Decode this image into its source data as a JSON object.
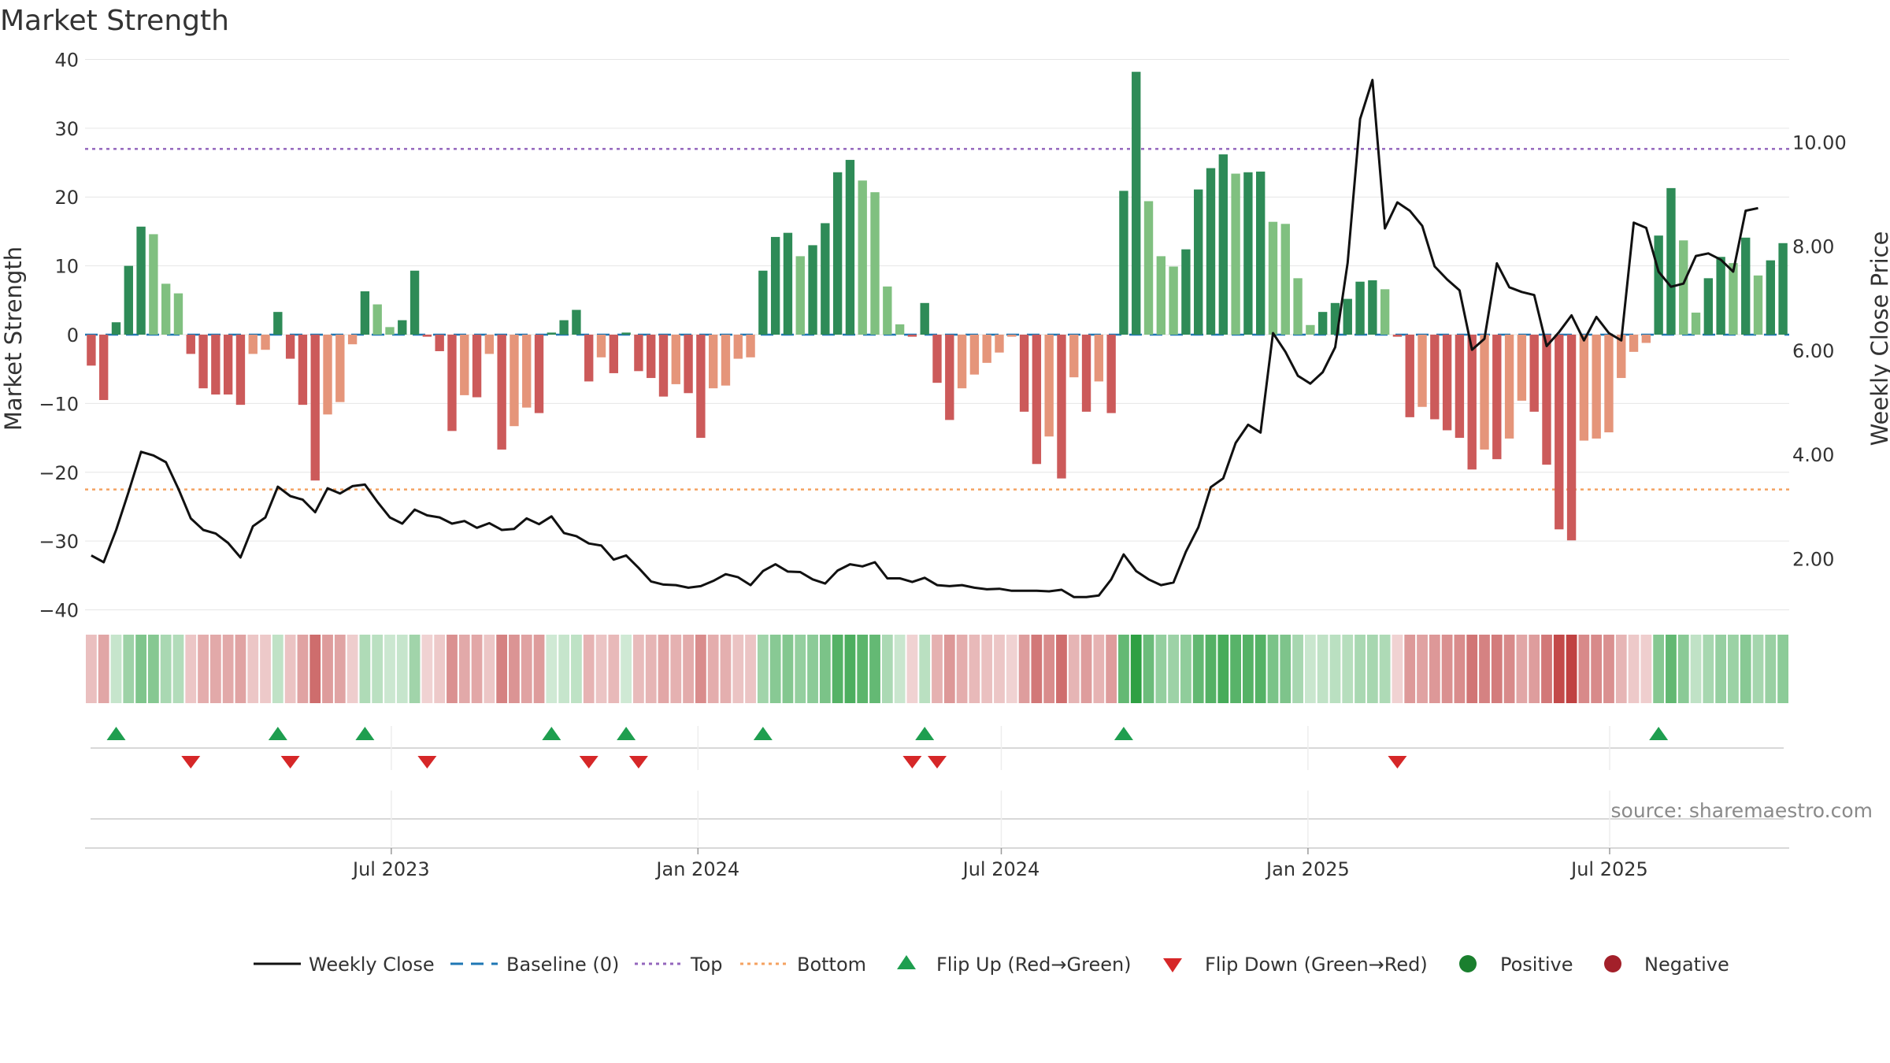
{
  "chart_data": {
    "type": "bar",
    "title": "Market Strength",
    "ylabel": "Market Strength",
    "y2label": "Weekly Close Price",
    "ylim": [
      -42,
      42
    ],
    "y2lim": [
      0.75,
      11.85
    ],
    "yticks": [
      40,
      30,
      20,
      10,
      0,
      -10,
      -20,
      -30,
      -40
    ],
    "y2ticks": [
      "10.00",
      "8.00",
      "6.00",
      "4.00",
      "2.00"
    ],
    "y2tick_values": [
      10,
      8,
      6,
      4,
      2
    ],
    "x_start_date": "2023-01-02",
    "x_end_date": "2025-10-13",
    "xticks": [
      {
        "label": "Jul 2023",
        "date": "2023-07-01"
      },
      {
        "label": "Jan 2024",
        "date": "2024-01-01"
      },
      {
        "label": "Jul 2024",
        "date": "2024-07-01"
      },
      {
        "label": "Jan 2025",
        "date": "2025-01-01"
      },
      {
        "label": "Jul 2025",
        "date": "2025-07-01"
      }
    ],
    "top_line": 27,
    "bottom_line": -22.5,
    "strength": [
      -4.5,
      -9.5,
      1.8,
      10,
      15.7,
      14.6,
      7.4,
      6,
      -2.8,
      -7.8,
      -8.7,
      -8.7,
      -10.2,
      -2.8,
      -2.2,
      3.3,
      -3.5,
      -10.2,
      -21.2,
      -11.6,
      -9.8,
      -1.4,
      6.3,
      4.4,
      1.1,
      2.1,
      9.3,
      -0.3,
      -2.4,
      -14,
      -8.8,
      -9.1,
      -2.8,
      -16.7,
      -13.3,
      -10.6,
      -11.4,
      0.3,
      2.1,
      3.6,
      -6.8,
      -3.3,
      -5.6,
      0.3,
      -5.3,
      -6.3,
      -9,
      -7.2,
      -8.5,
      -15,
      -7.8,
      -7.4,
      -3.5,
      -3.3,
      9.3,
      14.2,
      14.8,
      11.4,
      13,
      16.2,
      23.6,
      25.4,
      22.4,
      20.7,
      7,
      1.5,
      -0.3,
      4.6,
      -7,
      -12.4,
      -7.8,
      -5.8,
      -4.1,
      -2.6,
      -0.3,
      -11.2,
      -18.8,
      -14.8,
      -20.9,
      -6.2,
      -11.2,
      -6.8,
      -11.4,
      20.9,
      38.2,
      19.4,
      11.4,
      9.9,
      12.4,
      21.1,
      24.2,
      26.2,
      23.4,
      23.6,
      23.7,
      16.4,
      16.1,
      8.2,
      1.4,
      3.3,
      4.6,
      5.2,
      7.7,
      7.9,
      6.6,
      -0.3,
      -12,
      -10.5,
      -12.3,
      -13.9,
      -15,
      -19.6,
      -16.7,
      -18.1,
      -15.1,
      -9.6,
      -11.2,
      -18.9,
      -28.3,
      -29.9,
      -15.4,
      -15.1,
      -14.2,
      -6.3,
      -2.5,
      -1.2,
      14.4,
      21.3,
      13.7,
      3.2,
      8.2,
      11.3,
      10.4,
      14.1,
      8.6,
      10.8,
      13.3
    ],
    "close": [
      2.06,
      1.93,
      2.55,
      3.28,
      4.05,
      3.98,
      3.85,
      3.34,
      2.77,
      2.55,
      2.48,
      2.3,
      2.02,
      2.62,
      2.79,
      3.38,
      3.2,
      3.13,
      2.89,
      3.35,
      3.25,
      3.39,
      3.42,
      3.09,
      2.79,
      2.67,
      2.94,
      2.83,
      2.79,
      2.67,
      2.72,
      2.59,
      2.68,
      2.55,
      2.57,
      2.77,
      2.66,
      2.81,
      2.49,
      2.43,
      2.29,
      2.25,
      1.98,
      2.06,
      1.82,
      1.56,
      1.5,
      1.49,
      1.44,
      1.47,
      1.57,
      1.7,
      1.64,
      1.49,
      1.76,
      1.89,
      1.75,
      1.74,
      1.6,
      1.52,
      1.77,
      1.89,
      1.85,
      1.93,
      1.62,
      1.62,
      1.55,
      1.63,
      1.49,
      1.47,
      1.49,
      1.44,
      1.41,
      1.42,
      1.38,
      1.38,
      1.38,
      1.37,
      1.4,
      1.26,
      1.26,
      1.29,
      1.6,
      2.08,
      1.76,
      1.6,
      1.49,
      1.54,
      2.13,
      2.6,
      3.37,
      3.54,
      4.22,
      4.57,
      4.42,
      6.33,
      5.97,
      5.51,
      5.36,
      5.58,
      6.06,
      7.68,
      10.44,
      11.19,
      8.34,
      8.84,
      8.68,
      8.39,
      7.61,
      7.36,
      7.15,
      6.01,
      6.22,
      7.67,
      7.21,
      7.12,
      7.06,
      6.08,
      6.35,
      6.67,
      6.19,
      6.64,
      6.33,
      6.19,
      8.45,
      8.35,
      7.51,
      7.22,
      7.28,
      7.81,
      7.86,
      7.74,
      7.51,
      8.68,
      8.73
    ]
  },
  "legend": {
    "weekly_close": "Weekly Close",
    "baseline": "Baseline (0)",
    "top": "Top",
    "bottom": "Bottom",
    "flip_up": "Flip Up (Red→Green)",
    "flip_down": "Flip Down (Green→Red)",
    "positive": "Positive",
    "negative": "Negative"
  },
  "source": "source: sharemaestro.com",
  "colors": {
    "pos_strong": "#2e8b57",
    "pos_light": "#80c080",
    "neg_strong": "#cc5a5a",
    "neg_light": "#e5957a",
    "line": "#111111",
    "baseline": "#1f77b4",
    "top": "#9467bd",
    "bottom": "#f4a261",
    "flip_up": "#1e9e4f",
    "flip_down": "#d62728",
    "positive": "#1a7f2e",
    "negative": "#a3202a",
    "grid": "#e6e6e6"
  }
}
